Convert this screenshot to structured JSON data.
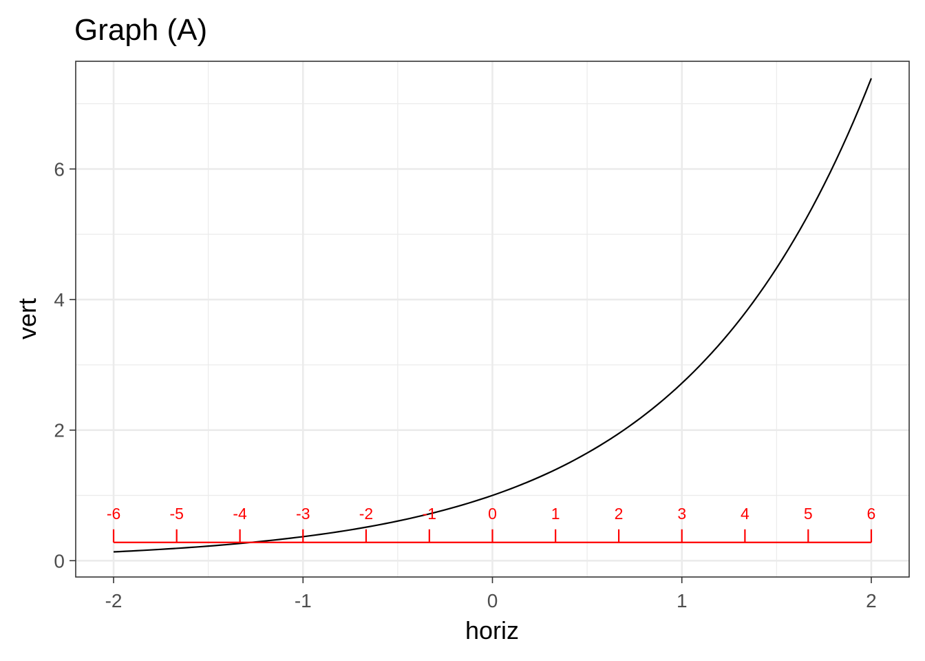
{
  "chart_data": {
    "type": "line",
    "title": "Graph (A)",
    "xlabel": "horiz",
    "ylabel": "vert",
    "xlim": [
      -2.2,
      2.2
    ],
    "ylim": [
      -0.25,
      7.65
    ],
    "x_ticks": [
      -2,
      -1,
      0,
      1,
      2
    ],
    "x_tick_labels": [
      "-2",
      "-1",
      "0",
      "1",
      "2"
    ],
    "y_ticks": [
      0,
      2,
      4,
      6
    ],
    "y_tick_labels": [
      "0",
      "2",
      "4",
      "6"
    ],
    "grid": true,
    "series": [
      {
        "color": "#000000",
        "x": [
          -2.0,
          -1.75,
          -1.5,
          -1.25,
          -1.0,
          -0.75,
          -0.5,
          -0.25,
          0.0,
          0.25,
          0.5,
          0.75,
          1.0,
          1.25,
          1.5,
          1.75,
          2.0
        ],
        "y": [
          0.135,
          0.174,
          0.223,
          0.287,
          0.368,
          0.472,
          0.607,
          0.779,
          1.0,
          1.284,
          1.649,
          2.117,
          2.718,
          3.49,
          4.482,
          5.755,
          7.389
        ]
      }
    ],
    "annotation_scale": {
      "color": "#ff0000",
      "y": 0.28,
      "x_start": -2,
      "x_end": 2,
      "ticks_x": [
        -2.0,
        -1.667,
        -1.333,
        -1.0,
        -0.667,
        -0.333,
        0.0,
        0.333,
        0.667,
        1.0,
        1.333,
        1.667,
        2.0
      ],
      "labels": [
        "-6",
        "-5",
        "-4",
        "-3",
        "-2",
        "-1",
        "0",
        "1",
        "2",
        "3",
        "4",
        "5",
        "6"
      ]
    }
  }
}
